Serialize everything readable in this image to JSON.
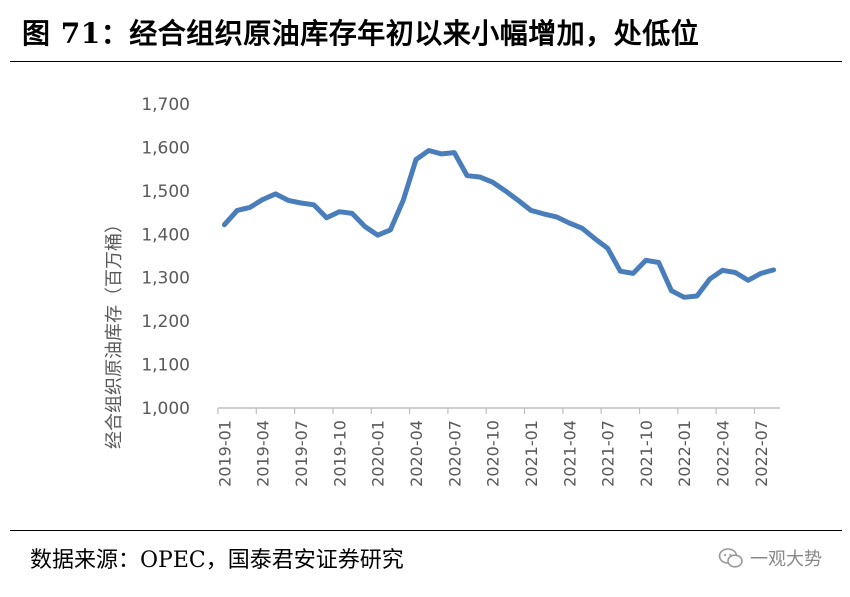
{
  "header": {
    "title": "图 71：经合组织原油库存年初以来小幅增加，处低位"
  },
  "footer": {
    "source": "数据来源：OPEC，国泰君安证券研究",
    "watermark": "一观大势",
    "watermark_icon": "wechat-icon"
  },
  "colors": {
    "line": "#4a7ebb",
    "axis": "#bfbfbf",
    "text": "#595959"
  },
  "chart_data": {
    "type": "line",
    "title": "",
    "xlabel": "",
    "ylabel": "经合组织原油库存（百万桶）",
    "ylim": [
      1000,
      1700
    ],
    "yticks": [
      1000,
      1100,
      1200,
      1300,
      1400,
      1500,
      1600,
      1700
    ],
    "ytick_labels": [
      "1,000",
      "1,100",
      "1,200",
      "1,300",
      "1,400",
      "1,500",
      "1,600",
      "1,700"
    ],
    "xticks": [
      "2019-01",
      "2019-04",
      "2019-07",
      "2019-10",
      "2020-01",
      "2020-04",
      "2020-07",
      "2020-10",
      "2021-01",
      "2021-04",
      "2021-07",
      "2021-10",
      "2022-01",
      "2022-04",
      "2022-07"
    ],
    "x": [
      "2019-01",
      "2019-02",
      "2019-03",
      "2019-04",
      "2019-05",
      "2019-06",
      "2019-07",
      "2019-08",
      "2019-09",
      "2019-10",
      "2019-11",
      "2019-12",
      "2020-01",
      "2020-02",
      "2020-03",
      "2020-04",
      "2020-05",
      "2020-06",
      "2020-07",
      "2020-08",
      "2020-09",
      "2020-10",
      "2020-11",
      "2020-12",
      "2021-01",
      "2021-02",
      "2021-03",
      "2021-04",
      "2021-05",
      "2021-06",
      "2021-07",
      "2021-08",
      "2021-09",
      "2021-10",
      "2021-11",
      "2021-12",
      "2022-01",
      "2022-02",
      "2022-03",
      "2022-04",
      "2022-05",
      "2022-06",
      "2022-07",
      "2022-08"
    ],
    "series": [
      {
        "name": "",
        "values": [
          1422,
          1455,
          1462,
          1480,
          1493,
          1478,
          1472,
          1468,
          1438,
          1452,
          1448,
          1418,
          1398,
          1410,
          1478,
          1572,
          1593,
          1585,
          1588,
          1535,
          1532,
          1520,
          1500,
          1478,
          1455,
          1447,
          1440,
          1426,
          1414,
          1390,
          1368,
          1315,
          1310,
          1340,
          1335,
          1270,
          1255,
          1258,
          1297,
          1317,
          1312,
          1294,
          1310,
          1318
        ]
      }
    ],
    "grid": false,
    "legend": "none"
  }
}
